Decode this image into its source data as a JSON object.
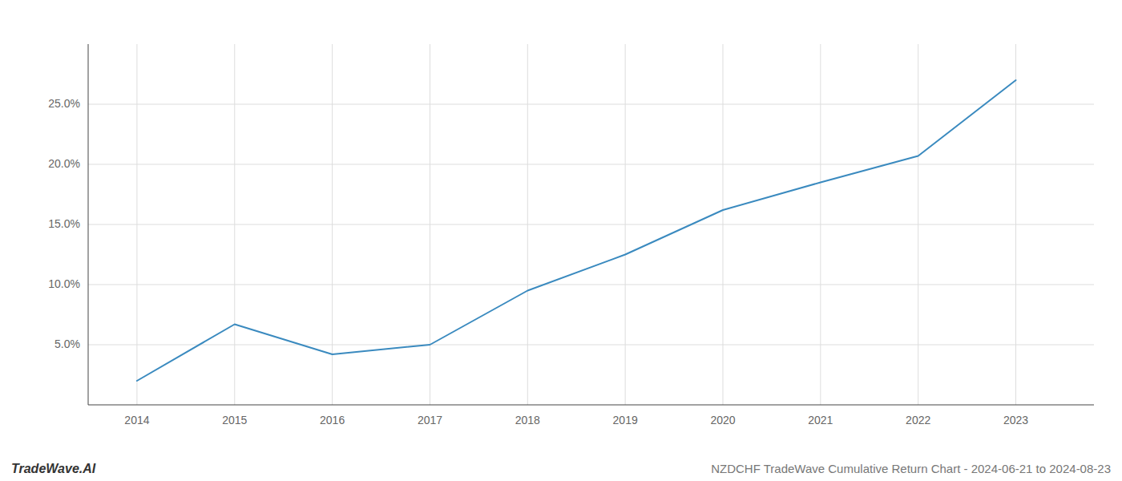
{
  "chart_data": {
    "type": "line",
    "title": "NZDCHF TradeWave Cumulative Return Chart - 2024-06-21 to 2024-08-23",
    "annotations": [
      "TradeWave.AI"
    ],
    "x": [
      2014,
      2015,
      2016,
      2017,
      2018,
      2019,
      2020,
      2021,
      2022,
      2023
    ],
    "values": [
      2.0,
      6.7,
      4.2,
      5.0,
      9.5,
      12.5,
      16.2,
      18.5,
      20.7,
      27.0
    ],
    "color": "#3a8abf",
    "xlim": [
      2013.5,
      2023.8
    ],
    "ylim": [
      0,
      30
    ],
    "xticks": [
      2014,
      2015,
      2016,
      2017,
      2018,
      2019,
      2020,
      2021,
      2022,
      2023
    ],
    "yticks": [
      {
        "value": 5.0,
        "label": "5.0%"
      },
      {
        "value": 10.0,
        "label": "10.0%"
      },
      {
        "value": 15.0,
        "label": "15.0%"
      },
      {
        "value": 20.0,
        "label": "20.0%"
      },
      {
        "value": 25.0,
        "label": "25.0%"
      }
    ],
    "grid": true
  }
}
